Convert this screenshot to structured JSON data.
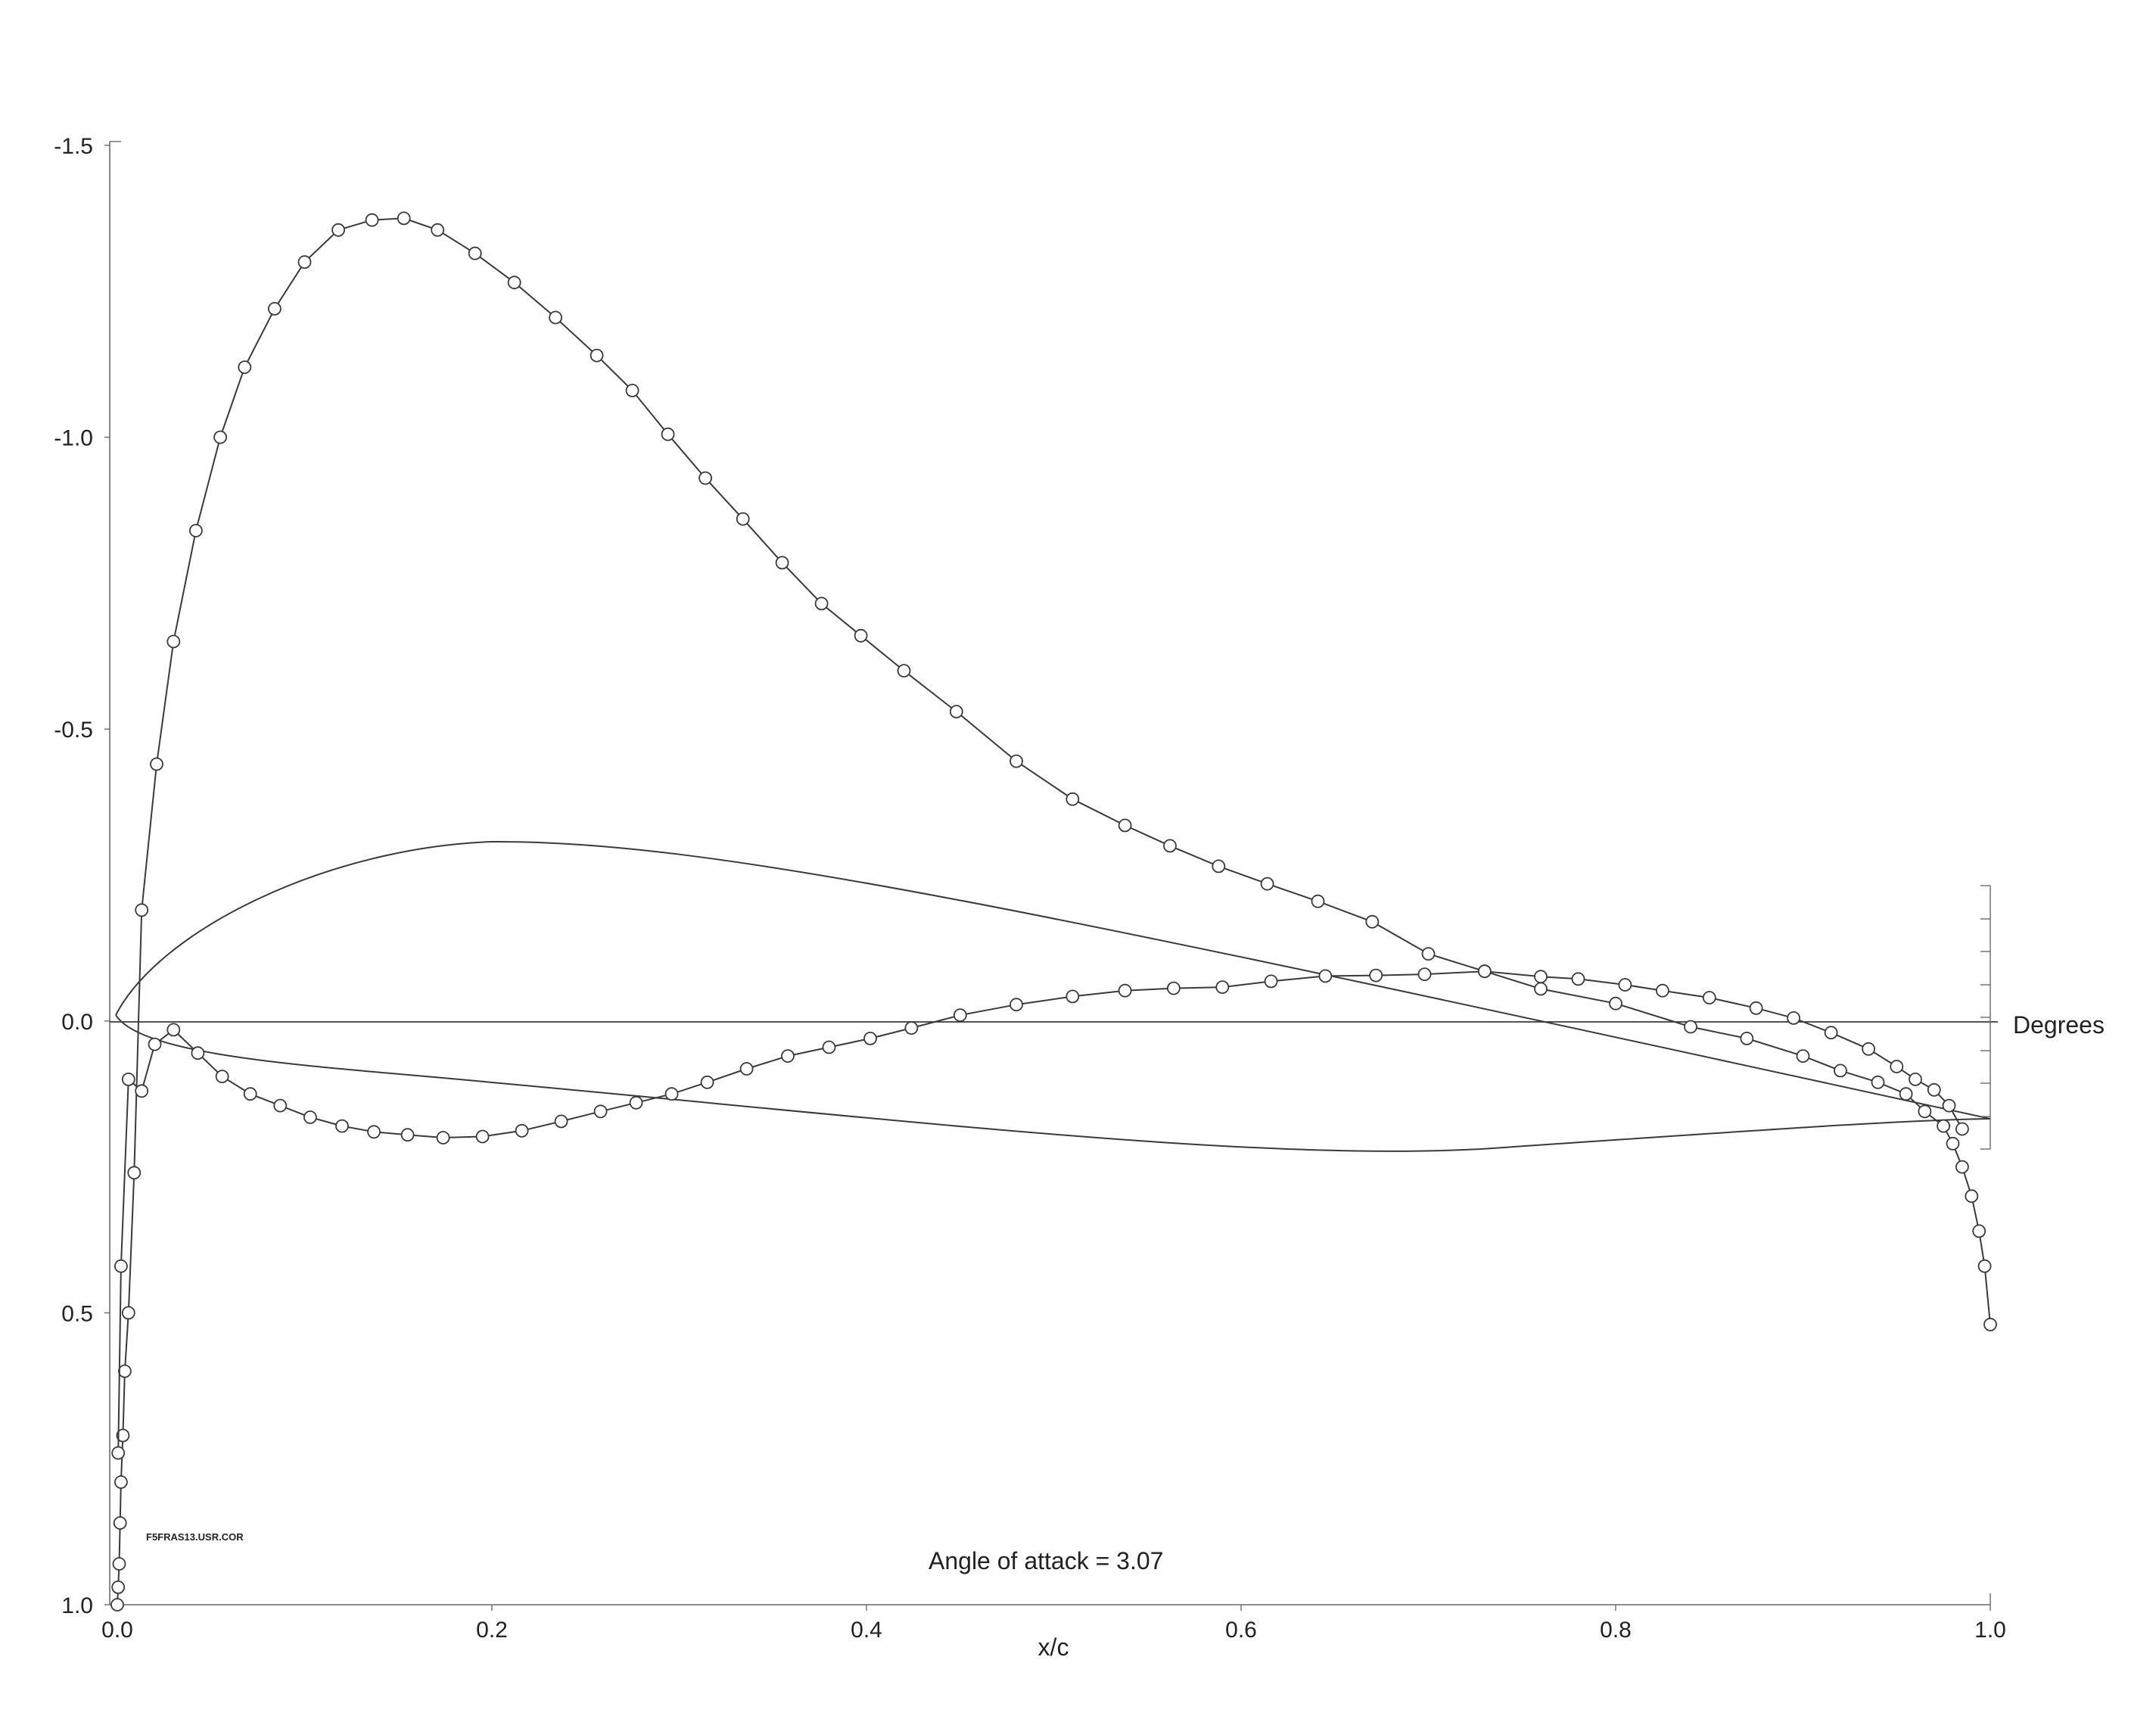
{
  "chart_data": {
    "type": "line",
    "title": "",
    "xlabel": "x/c",
    "ylabel": "",
    "xlim": [
      0,
      1.0
    ],
    "ylim": [
      1.0,
      -1.5
    ],
    "y_inverted": true,
    "grid": false,
    "x_ticks": [
      "0.0",
      "0.2",
      "0.4",
      "0.6",
      "0.8",
      "1.0"
    ],
    "y_ticks": [
      {
        "value": -1.5,
        "label": "-1.5"
      },
      {
        "value": -1.0,
        "label": "-1.0"
      },
      {
        "value": -0.5,
        "label": "-0.5"
      },
      {
        "value": 0.0,
        "label": "0.0"
      },
      {
        "value": 0.5,
        "label": "0.5"
      },
      {
        "value": 1.0,
        "label": "1.0"
      }
    ],
    "annotations": {
      "angle_of_attack": "Angle of attack = 3.07",
      "file_name": "F5FRAS13.USR.COR",
      "right_scale_label": "Degrees"
    },
    "series": [
      {
        "marker": "circle",
        "points": [
          [
            0.0,
            1.0
          ],
          [
            0.0005,
            0.97
          ],
          [
            0.001,
            0.93
          ],
          [
            0.0015,
            0.86
          ],
          [
            0.002,
            0.79
          ],
          [
            0.003,
            0.71
          ],
          [
            0.004,
            0.6
          ],
          [
            0.006,
            0.5
          ],
          [
            0.009,
            0.26
          ],
          [
            0.013,
            -0.19
          ],
          [
            0.021,
            -0.44
          ],
          [
            0.03,
            -0.65
          ],
          [
            0.042,
            -0.84
          ],
          [
            0.055,
            -1.0
          ],
          [
            0.068,
            -1.12
          ],
          [
            0.084,
            -1.22
          ],
          [
            0.1,
            -1.3
          ],
          [
            0.118,
            -1.355
          ],
          [
            0.136,
            -1.372
          ],
          [
            0.153,
            -1.375
          ],
          [
            0.171,
            -1.355
          ],
          [
            0.191,
            -1.315
          ],
          [
            0.212,
            -1.265
          ],
          [
            0.234,
            -1.205
          ],
          [
            0.256,
            -1.14
          ],
          [
            0.275,
            -1.08
          ],
          [
            0.294,
            -1.005
          ],
          [
            0.314,
            -0.93
          ],
          [
            0.334,
            -0.86
          ],
          [
            0.355,
            -0.785
          ],
          [
            0.376,
            -0.715
          ],
          [
            0.397,
            -0.66
          ],
          [
            0.42,
            -0.6
          ],
          [
            0.448,
            -0.53
          ],
          [
            0.48,
            -0.445
          ],
          [
            0.51,
            -0.38
          ],
          [
            0.538,
            -0.335
          ],
          [
            0.562,
            -0.3
          ],
          [
            0.588,
            -0.265
          ],
          [
            0.614,
            -0.235
          ],
          [
            0.641,
            -0.205
          ],
          [
            0.67,
            -0.17
          ],
          [
            0.7,
            -0.115
          ],
          [
            0.73,
            -0.085
          ],
          [
            0.76,
            -0.055
          ],
          [
            0.8,
            -0.03
          ],
          [
            0.84,
            0.01
          ],
          [
            0.87,
            0.03
          ],
          [
            0.9,
            0.06
          ],
          [
            0.92,
            0.085
          ],
          [
            0.94,
            0.105
          ],
          [
            0.955,
            0.125
          ],
          [
            0.965,
            0.155
          ],
          [
            0.975,
            0.18
          ],
          [
            0.98,
            0.21
          ],
          [
            0.985,
            0.25
          ],
          [
            0.99,
            0.3
          ],
          [
            0.994,
            0.36
          ],
          [
            0.997,
            0.42
          ],
          [
            1.0,
            0.52
          ]
        ]
      },
      {
        "marker": "circle",
        "points": [
          [
            0.0005,
            0.74
          ],
          [
            0.002,
            0.42
          ],
          [
            0.006,
            0.1
          ],
          [
            0.013,
            0.12
          ],
          [
            0.02,
            0.04
          ],
          [
            0.03,
            0.015
          ],
          [
            0.043,
            0.055
          ],
          [
            0.056,
            0.095
          ],
          [
            0.071,
            0.125
          ],
          [
            0.087,
            0.145
          ],
          [
            0.103,
            0.165
          ],
          [
            0.12,
            0.18
          ],
          [
            0.137,
            0.19
          ],
          [
            0.155,
            0.195
          ],
          [
            0.174,
            0.2
          ],
          [
            0.195,
            0.198
          ],
          [
            0.216,
            0.188
          ],
          [
            0.237,
            0.172
          ],
          [
            0.258,
            0.155
          ],
          [
            0.277,
            0.14
          ],
          [
            0.296,
            0.125
          ],
          [
            0.315,
            0.105
          ],
          [
            0.336,
            0.082
          ],
          [
            0.358,
            0.06
          ],
          [
            0.38,
            0.045
          ],
          [
            0.402,
            0.03
          ],
          [
            0.424,
            0.012
          ],
          [
            0.45,
            -0.01
          ],
          [
            0.48,
            -0.028
          ],
          [
            0.51,
            -0.042
          ],
          [
            0.538,
            -0.052
          ],
          [
            0.564,
            -0.056
          ],
          [
            0.59,
            -0.058
          ],
          [
            0.616,
            -0.068
          ],
          [
            0.645,
            -0.077
          ],
          [
            0.672,
            -0.078
          ],
          [
            0.698,
            -0.08
          ],
          [
            0.73,
            -0.085
          ],
          [
            0.76,
            -0.076
          ],
          [
            0.78,
            -0.072
          ],
          [
            0.805,
            -0.062
          ],
          [
            0.825,
            -0.052
          ],
          [
            0.85,
            -0.04
          ],
          [
            0.875,
            -0.022
          ],
          [
            0.895,
            -0.005
          ],
          [
            0.915,
            0.02
          ],
          [
            0.935,
            0.048
          ],
          [
            0.95,
            0.078
          ],
          [
            0.96,
            0.1
          ],
          [
            0.97,
            0.118
          ],
          [
            0.978,
            0.145
          ],
          [
            0.985,
            0.185
          ]
        ]
      }
    ]
  }
}
